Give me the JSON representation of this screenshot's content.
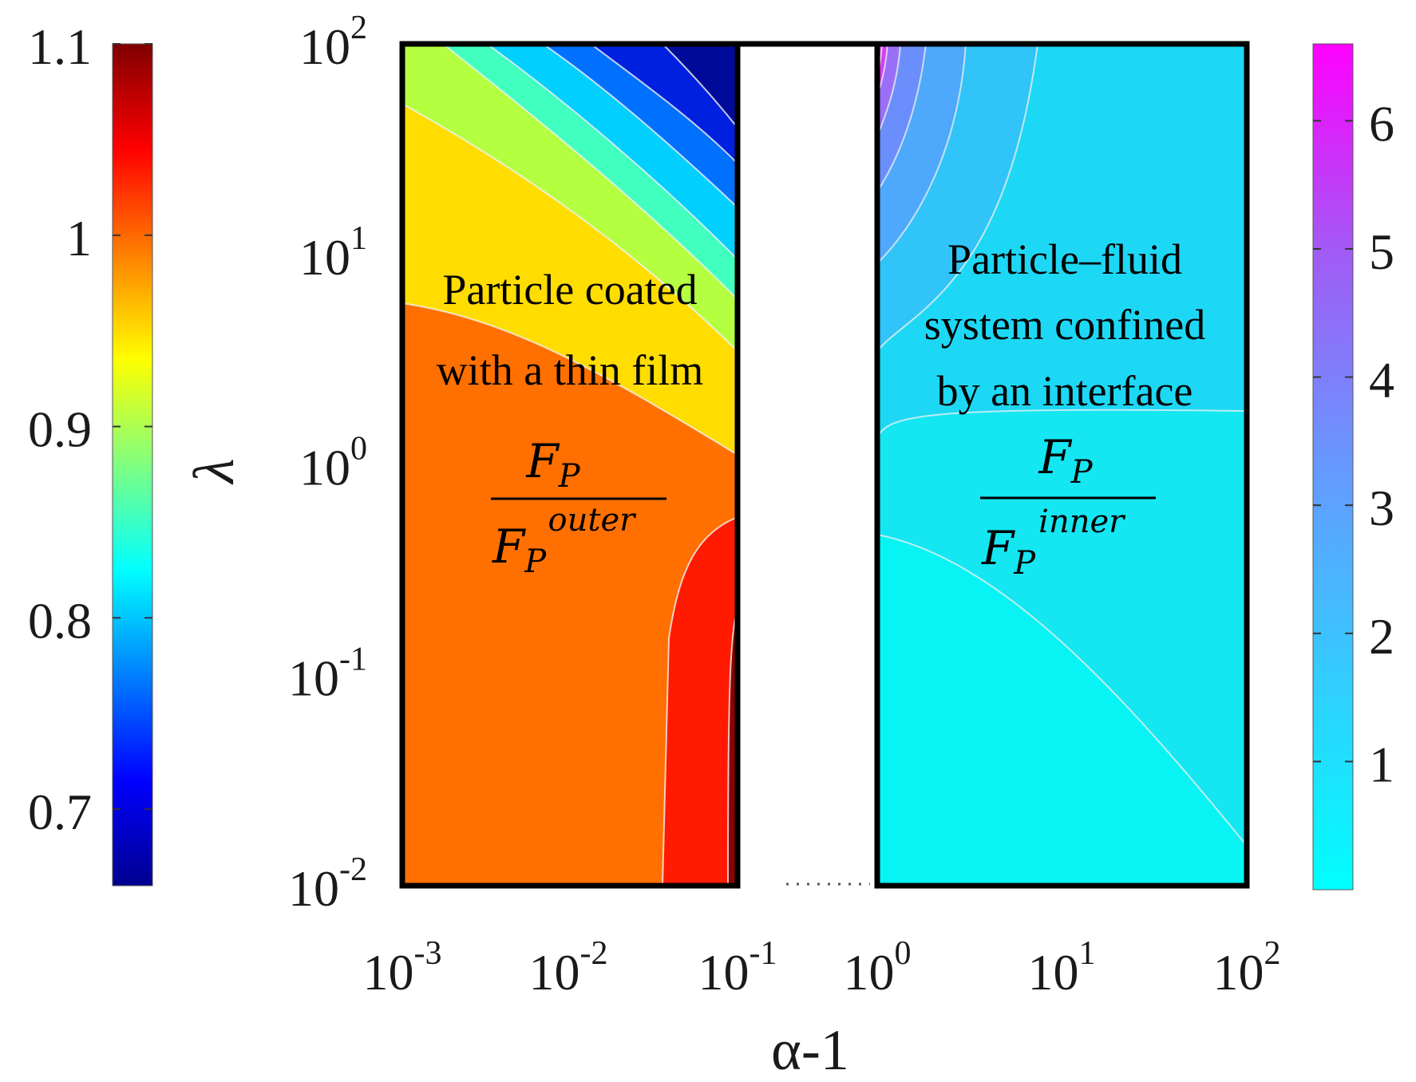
{
  "chart_data": [
    {
      "type": "contour",
      "name": "Particle coated with a thin film",
      "x_axis": {
        "label": "α-1",
        "scale": "log",
        "range": [
          0.001,
          0.1
        ]
      },
      "y_axis": {
        "label": "λ",
        "scale": "log",
        "range": [
          0.01,
          100
        ]
      },
      "colorbar": {
        "colormap": "jet",
        "range": [
          0.66,
          1.1
        ],
        "ticks": [
          "0.7",
          "0.8",
          "0.9",
          "1",
          "1.1"
        ],
        "side": "left"
      },
      "annotation": {
        "lines": [
          "Particle coated",
          "with a thin film"
        ],
        "ratio_numerator": "F",
        "ratio_numerator_sub": "P",
        "ratio_denominator": "F",
        "ratio_denominator_sub": "P",
        "ratio_denominator_sup": "outer"
      },
      "contour_levels": [
        0.7,
        0.75,
        0.8,
        0.85,
        0.9,
        0.95,
        1.0,
        1.05
      ],
      "level_colors": [
        "#00008f",
        "#0040ff",
        "#00bfff",
        "#40ffbf",
        "#bfff40",
        "#ffdd00",
        "#ff7200",
        "#ff1a00",
        "#8b0000"
      ]
    },
    {
      "type": "contour",
      "name": "Particle–fluid system confined by an interface",
      "x_axis": {
        "label": "α-1",
        "scale": "log",
        "range": [
          1,
          100
        ]
      },
      "y_axis": {
        "label": "λ",
        "scale": "log",
        "range": [
          0.01,
          100
        ]
      },
      "colorbar": {
        "colormap": "cyan-to-magenta",
        "range": [
          0,
          6.6
        ],
        "ticks": [
          "1",
          "2",
          "3",
          "4",
          "5",
          "6"
        ],
        "side": "right"
      },
      "annotation": {
        "lines": [
          "Particle–fluid",
          "system confined",
          "by an interface"
        ],
        "ratio_numerator": "F",
        "ratio_numerator_sub": "P",
        "ratio_denominator": "F",
        "ratio_denominator_sub": "P",
        "ratio_denominator_sup": "inner"
      }
    }
  ],
  "axes": {
    "xlabel": "α-1",
    "ylabel": "λ",
    "x_ticks": [
      {
        "base": "10",
        "exp": "-3"
      },
      {
        "base": "10",
        "exp": "-2"
      },
      {
        "base": "10",
        "exp": "-1"
      },
      {
        "base": "10",
        "exp": "0"
      },
      {
        "base": "10",
        "exp": "1"
      },
      {
        "base": "10",
        "exp": "2"
      }
    ],
    "y_ticks": [
      {
        "base": "10",
        "exp": "2"
      },
      {
        "base": "10",
        "exp": "1"
      },
      {
        "base": "10",
        "exp": "0"
      },
      {
        "base": "10",
        "exp": "-1"
      },
      {
        "base": "10",
        "exp": "-2"
      }
    ]
  },
  "colors": {
    "left_panel_bg": "#ff7000",
    "right_panel_bg": "#14e6f2",
    "contour_line": "#f2f2f2",
    "frame": "#000000"
  }
}
